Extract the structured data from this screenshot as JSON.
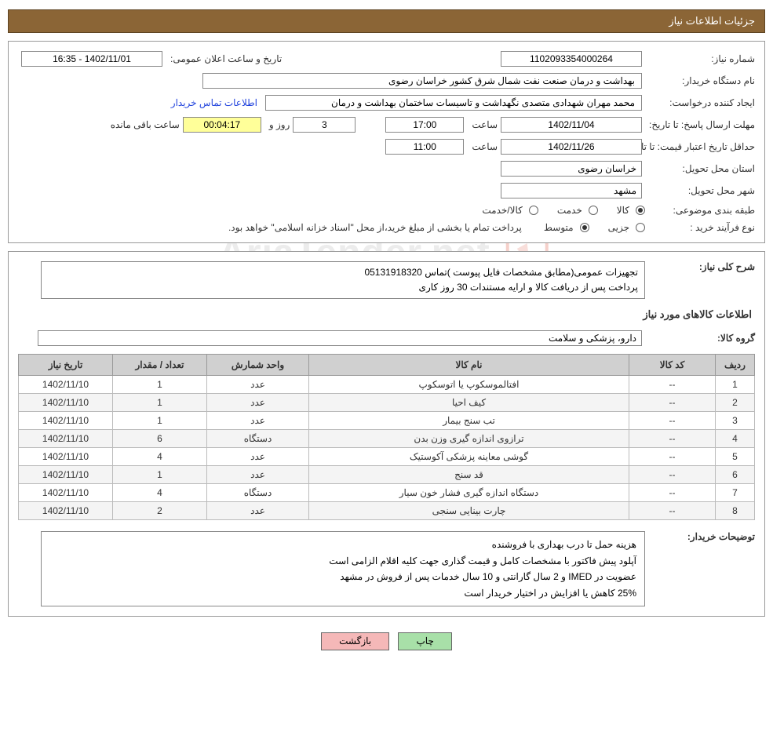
{
  "header": {
    "title": "جزئیات اطلاعات نیاز"
  },
  "info": {
    "need_number_label": "شماره نیاز:",
    "need_number": "1102093354000264",
    "announce_label": "تاریخ و ساعت اعلان عمومی:",
    "announce_value": "1402/11/01 - 16:35",
    "buyer_org_label": "نام دستگاه خریدار:",
    "buyer_org": "بهداشت و درمان صنعت نفت شمال شرق کشور   خراسان رضوی",
    "requester_label": "ایجاد کننده درخواست:",
    "requester": "محمد مهران شهدادی متصدی نگهداشت و تاسیسات ساختمان بهداشت و درمان",
    "contact_link": "اطلاعات تماس خریدار",
    "deadline_label": "مهلت ارسال پاسخ: تا تاریخ:",
    "deadline_date": "1402/11/04",
    "time_label": "ساعت",
    "deadline_time": "17:00",
    "days_value": "3",
    "days_and_label": "روز و",
    "countdown": "00:04:17",
    "remaining_label": "ساعت باقی مانده",
    "validity_label": "حداقل تاریخ اعتبار قیمت: تا تاریخ:",
    "validity_date": "1402/11/26",
    "validity_time": "11:00",
    "province_label": "استان محل تحویل:",
    "province": "خراسان رضوی",
    "city_label": "شهر محل تحویل:",
    "city": "مشهد",
    "category_label": "طبقه بندی موضوعی:",
    "radio_goods": "کالا",
    "radio_service": "خدمت",
    "radio_both": "کالا/خدمت",
    "process_label": "نوع فرآیند خرید :",
    "radio_partial": "جزیی",
    "radio_medium": "متوسط",
    "process_note": "پرداخت تمام یا بخشی از مبلغ خرید،از محل \"اسناد خزانه اسلامی\" خواهد بود."
  },
  "desc": {
    "general_label": "شرح کلی نیاز:",
    "line1": "تجهیزات عمومی(مطابق  مشخصات فایل پیوست )تماس 05131918320",
    "line2": "پرداخت پس از دریافت کالا و ارایه مستندات 30 روز کاری"
  },
  "items": {
    "section_title": "اطلاعات کالاهای مورد نیاز",
    "group_label": "گروه کالا:",
    "group_value": "دارو، پزشکی و سلامت",
    "columns": {
      "row": "ردیف",
      "code": "کد کالا",
      "name": "نام کالا",
      "unit": "واحد شمارش",
      "qty": "تعداد / مقدار",
      "date": "تاریخ نیاز"
    },
    "rows": [
      {
        "row": "1",
        "code": "--",
        "name": "افتالموسکوپ یا اتوسکوپ",
        "unit": "عدد",
        "qty": "1",
        "date": "1402/11/10"
      },
      {
        "row": "2",
        "code": "--",
        "name": "کیف احیا",
        "unit": "عدد",
        "qty": "1",
        "date": "1402/11/10"
      },
      {
        "row": "3",
        "code": "--",
        "name": "تب سنج بیمار",
        "unit": "عدد",
        "qty": "1",
        "date": "1402/11/10"
      },
      {
        "row": "4",
        "code": "--",
        "name": "ترازوی اندازه گیری وزن بدن",
        "unit": "دستگاه",
        "qty": "6",
        "date": "1402/11/10"
      },
      {
        "row": "5",
        "code": "--",
        "name": "گوشی معاینه پزشکی آکوستیک",
        "unit": "عدد",
        "qty": "4",
        "date": "1402/11/10"
      },
      {
        "row": "6",
        "code": "--",
        "name": "قد سنج",
        "unit": "عدد",
        "qty": "1",
        "date": "1402/11/10"
      },
      {
        "row": "7",
        "code": "--",
        "name": "دستگاه اندازه گیری فشار خون سیار",
        "unit": "دستگاه",
        "qty": "4",
        "date": "1402/11/10"
      },
      {
        "row": "8",
        "code": "--",
        "name": "چارت بینایی سنجی",
        "unit": "عدد",
        "qty": "2",
        "date": "1402/11/10"
      }
    ]
  },
  "buyer_notes": {
    "label": "توضیحات خریدار:",
    "l1": "هزینه حمل  تا درب بهداری  با فروشنده",
    "l2": "آپلود پیش فاکتور با مشخصات کامل  و قیمت گذاری جهت کلیه اقلام الزامی است",
    "l3": "عضویت در IMED و 2 سال گارانتی و 10 سال خدمات  پس از فروش در مشهد",
    "l4": "25% کاهش یا افزایش در اختیار خریدار است"
  },
  "buttons": {
    "print": "چاپ",
    "back": "بازگشت"
  },
  "watermark": "AriaTender.net",
  "colors": {
    "header_bg": "#8b6536",
    "header_border": "#5e4423",
    "panel_border": "#999999",
    "field_border": "#888888",
    "link": "#2244dd",
    "yellow": "#ffff99",
    "th_bg": "#d0d0d0",
    "row_alt": "#f4f4f4",
    "btn_green": "#a8e0a8",
    "btn_pink": "#f5b8b8",
    "watermark_color": "#dddddd"
  }
}
